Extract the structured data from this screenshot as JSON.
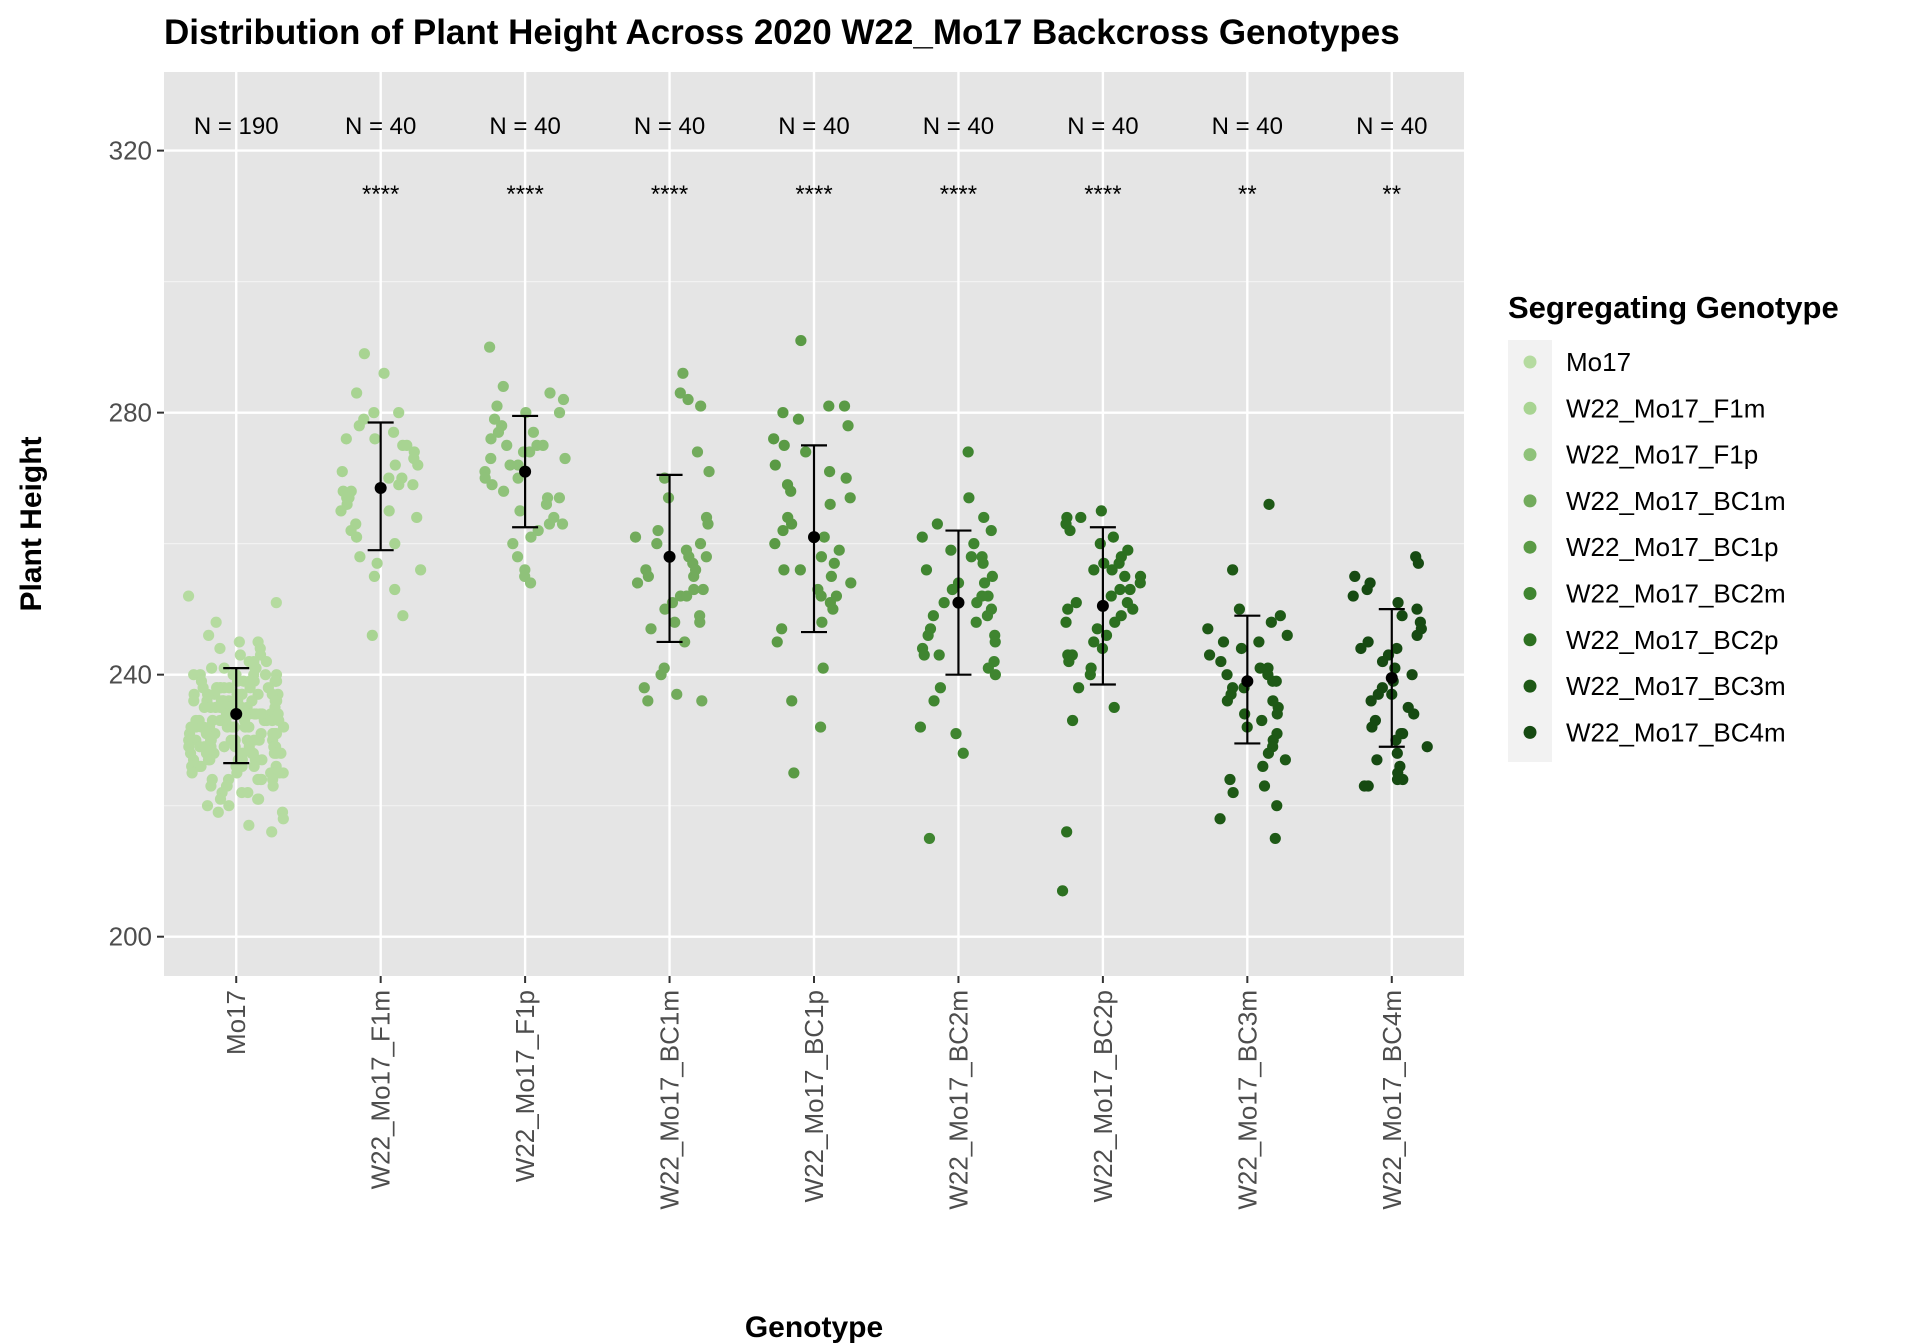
{
  "chart_data": {
    "type": "scatter",
    "title": "Distribution of Plant Height Across 2020 W22_Mo17 Backcross Genotypes",
    "xlabel": "Genotype",
    "ylabel": "Plant Height",
    "ylim": [
      194,
      332
    ],
    "y_ticks": [
      200,
      240,
      280,
      320
    ],
    "grid": true,
    "legend": {
      "title": "Segregating Genotype",
      "placement": "right"
    },
    "categories": [
      "Mo17",
      "W22_Mo17_F1m",
      "W22_Mo17_F1p",
      "W22_Mo17_BC1m",
      "W22_Mo17_BC1p",
      "W22_Mo17_BC2m",
      "W22_Mo17_BC2p",
      "W22_Mo17_BC3m",
      "W22_Mo17_BC4m"
    ],
    "series": [
      {
        "name": "Mo17",
        "color": "#b5dba0",
        "n_label": "N = 190",
        "signif": "",
        "mean": 234,
        "sd_low": 226.5,
        "sd_high": 241,
        "values": [
          252,
          251,
          248,
          246,
          245,
          245,
          244,
          244,
          243,
          243,
          242,
          242,
          242,
          241,
          241,
          241,
          241,
          240,
          240,
          240,
          240,
          240,
          240,
          239,
          239,
          239,
          239,
          239,
          239,
          239,
          238,
          238,
          238,
          238,
          238,
          238,
          238,
          238,
          237,
          237,
          237,
          237,
          237,
          237,
          237,
          237,
          236,
          236,
          236,
          236,
          236,
          236,
          236,
          236,
          236,
          235,
          235,
          235,
          235,
          235,
          235,
          235,
          235,
          235,
          235,
          234,
          234,
          234,
          234,
          234,
          234,
          234,
          234,
          234,
          234,
          233,
          233,
          233,
          233,
          233,
          233,
          233,
          233,
          233,
          233,
          232,
          232,
          232,
          232,
          232,
          232,
          232,
          232,
          232,
          232,
          231,
          231,
          231,
          231,
          231,
          231,
          231,
          231,
          231,
          230,
          230,
          230,
          230,
          230,
          230,
          230,
          230,
          230,
          229,
          229,
          229,
          229,
          229,
          229,
          229,
          229,
          228,
          228,
          228,
          228,
          228,
          228,
          228,
          228,
          227,
          227,
          227,
          227,
          227,
          227,
          227,
          226,
          226,
          226,
          226,
          226,
          226,
          225,
          225,
          225,
          225,
          225,
          225,
          224,
          224,
          224,
          224,
          224,
          223,
          223,
          223,
          223,
          222,
          222,
          222,
          221,
          221,
          221,
          220,
          220,
          219,
          219,
          218,
          217,
          216,
          236,
          237,
          238,
          239,
          240,
          235,
          234,
          233,
          232,
          231,
          230,
          229,
          228,
          227,
          226,
          225,
          224,
          236,
          234,
          232
        ]
      },
      {
        "name": "W22_Mo17_F1m",
        "color": "#a8d492",
        "n_label": "N = 40",
        "signif": "****",
        "mean": 268.5,
        "sd_low": 259,
        "sd_high": 278.5,
        "values": [
          289,
          286,
          283,
          280,
          279,
          278,
          277,
          276,
          276,
          275,
          275,
          274,
          273,
          272,
          272,
          271,
          270,
          270,
          269,
          269,
          268,
          268,
          267,
          267,
          266,
          265,
          265,
          264,
          263,
          262,
          261,
          260,
          258,
          257,
          256,
          255,
          253,
          249,
          246,
          280
        ]
      },
      {
        "name": "W22_Mo17_F1p",
        "color": "#8fc27a",
        "n_label": "N = 40",
        "signif": "****",
        "mean": 271,
        "sd_low": 262.5,
        "sd_high": 279.5,
        "values": [
          290,
          284,
          283,
          282,
          281,
          280,
          280,
          279,
          278,
          277,
          277,
          276,
          275,
          275,
          274,
          274,
          273,
          273,
          272,
          272,
          271,
          270,
          270,
          269,
          268,
          267,
          267,
          266,
          265,
          264,
          263,
          263,
          262,
          261,
          260,
          258,
          256,
          255,
          254,
          275
        ]
      },
      {
        "name": "W22_Mo17_BC1m",
        "color": "#72ab5c",
        "n_label": "N = 40",
        "signif": "****",
        "mean": 258,
        "sd_low": 245,
        "sd_high": 270.5,
        "values": [
          286,
          283,
          282,
          281,
          274,
          271,
          270,
          267,
          264,
          263,
          262,
          261,
          260,
          260,
          259,
          258,
          258,
          257,
          256,
          255,
          255,
          254,
          253,
          253,
          252,
          252,
          251,
          250,
          249,
          248,
          248,
          247,
          245,
          241,
          240,
          238,
          237,
          236,
          236,
          256
        ]
      },
      {
        "name": "W22_Mo17_BC1p",
        "color": "#5a9a45",
        "n_label": "N = 40",
        "signif": "****",
        "mean": 261,
        "sd_low": 246.5,
        "sd_high": 275,
        "values": [
          291,
          281,
          281,
          280,
          279,
          278,
          276,
          275,
          274,
          272,
          271,
          270,
          269,
          268,
          267,
          266,
          264,
          262,
          261,
          260,
          259,
          258,
          257,
          256,
          256,
          255,
          254,
          253,
          252,
          252,
          251,
          250,
          248,
          247,
          245,
          241,
          236,
          232,
          225,
          263
        ]
      },
      {
        "name": "W22_Mo17_BC2m",
        "color": "#3f8530",
        "n_label": "N = 40",
        "signif": "****",
        "mean": 251,
        "sd_low": 240,
        "sd_high": 262,
        "values": [
          274,
          267,
          264,
          263,
          262,
          261,
          260,
          259,
          258,
          258,
          257,
          256,
          255,
          254,
          254,
          253,
          252,
          252,
          251,
          250,
          249,
          249,
          248,
          247,
          246,
          246,
          245,
          244,
          243,
          243,
          242,
          241,
          240,
          238,
          236,
          232,
          231,
          228,
          215,
          251
        ]
      },
      {
        "name": "W22_Mo17_BC2p",
        "color": "#2c7020",
        "n_label": "N = 40",
        "signif": "****",
        "mean": 250.5,
        "sd_low": 238.5,
        "sd_high": 262.5,
        "values": [
          265,
          264,
          264,
          263,
          262,
          261,
          260,
          259,
          258,
          257,
          257,
          256,
          256,
          255,
          255,
          254,
          253,
          252,
          251,
          251,
          250,
          249,
          248,
          247,
          246,
          245,
          244,
          243,
          243,
          242,
          241,
          240,
          238,
          235,
          233,
          216,
          207,
          253,
          250,
          248
        ]
      },
      {
        "name": "W22_Mo17_BC3m",
        "color": "#1e5916",
        "n_label": "N = 40",
        "signif": "**",
        "mean": 239,
        "sd_low": 229.5,
        "sd_high": 249,
        "values": [
          266,
          256,
          250,
          249,
          248,
          247,
          246,
          245,
          245,
          244,
          243,
          242,
          241,
          240,
          240,
          239,
          239,
          238,
          238,
          237,
          236,
          235,
          234,
          233,
          232,
          231,
          230,
          229,
          228,
          227,
          226,
          224,
          223,
          222,
          220,
          218,
          215,
          241,
          236,
          234
        ]
      },
      {
        "name": "W22_Mo17_BC4m",
        "color": "#164a12",
        "n_label": "N = 40",
        "signif": "**",
        "mean": 239.5,
        "sd_low": 229,
        "sd_high": 250,
        "values": [
          258,
          257,
          255,
          254,
          253,
          252,
          251,
          250,
          249,
          248,
          247,
          246,
          245,
          244,
          243,
          242,
          241,
          240,
          239,
          238,
          237,
          236,
          235,
          234,
          233,
          232,
          231,
          230,
          229,
          228,
          227,
          226,
          225,
          224,
          224,
          223,
          223,
          244,
          237,
          231
        ]
      }
    ]
  }
}
